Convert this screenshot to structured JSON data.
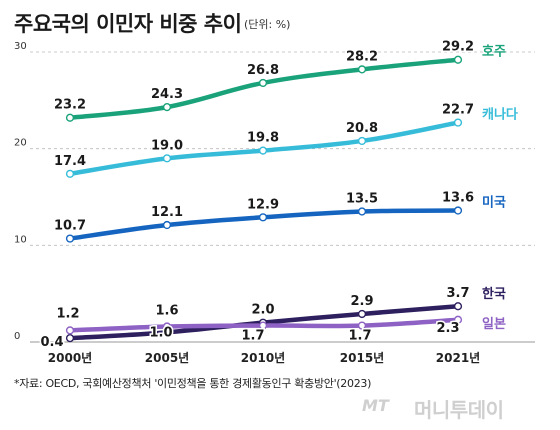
{
  "chart_data": {
    "type": "line",
    "title": "주요국의 이민자 비중 추이",
    "unit": "(단위: %)",
    "categories": [
      "2000년",
      "2005년",
      "2010년",
      "2015년",
      "2021년"
    ],
    "ylim": [
      0,
      30
    ],
    "yticks": [
      "0",
      "10",
      "20",
      "30"
    ],
    "grid": true,
    "series": [
      {
        "name": "호주",
        "color": "#1aa37a",
        "values": [
          23.2,
          24.3,
          26.8,
          28.2,
          29.2
        ],
        "labels": [
          "23.2",
          "24.3",
          "26.8",
          "28.2",
          "29.2"
        ]
      },
      {
        "name": "캐나다",
        "color": "#36bcd9",
        "values": [
          17.4,
          19.0,
          19.8,
          20.8,
          22.7
        ],
        "labels": [
          "17.4",
          "19.0",
          "19.8",
          "20.8",
          "22.7"
        ]
      },
      {
        "name": "미국",
        "color": "#1565c0",
        "values": [
          10.7,
          12.1,
          12.9,
          13.5,
          13.6
        ],
        "labels": [
          "10.7",
          "12.1",
          "12.9",
          "13.5",
          "13.6"
        ]
      },
      {
        "name": "한국",
        "color": "#2e1f5e",
        "values": [
          0.4,
          1.0,
          2.0,
          2.9,
          3.7
        ],
        "labels": [
          "0.4",
          "1.0",
          "2.0",
          "2.9",
          "3.7"
        ]
      },
      {
        "name": "일본",
        "color": "#8e62c4",
        "values": [
          1.2,
          1.6,
          1.7,
          1.7,
          2.3
        ],
        "labels": [
          "1.2",
          "1.6",
          "1.7",
          "1.7",
          "2.3"
        ]
      }
    ]
  },
  "source": "*자료: OECD, 국회예산정책처 '이민정책을 통한 경제활동인구 확충방안'(2023)",
  "logo": {
    "mt": "MT",
    "text": "머니투데이"
  }
}
